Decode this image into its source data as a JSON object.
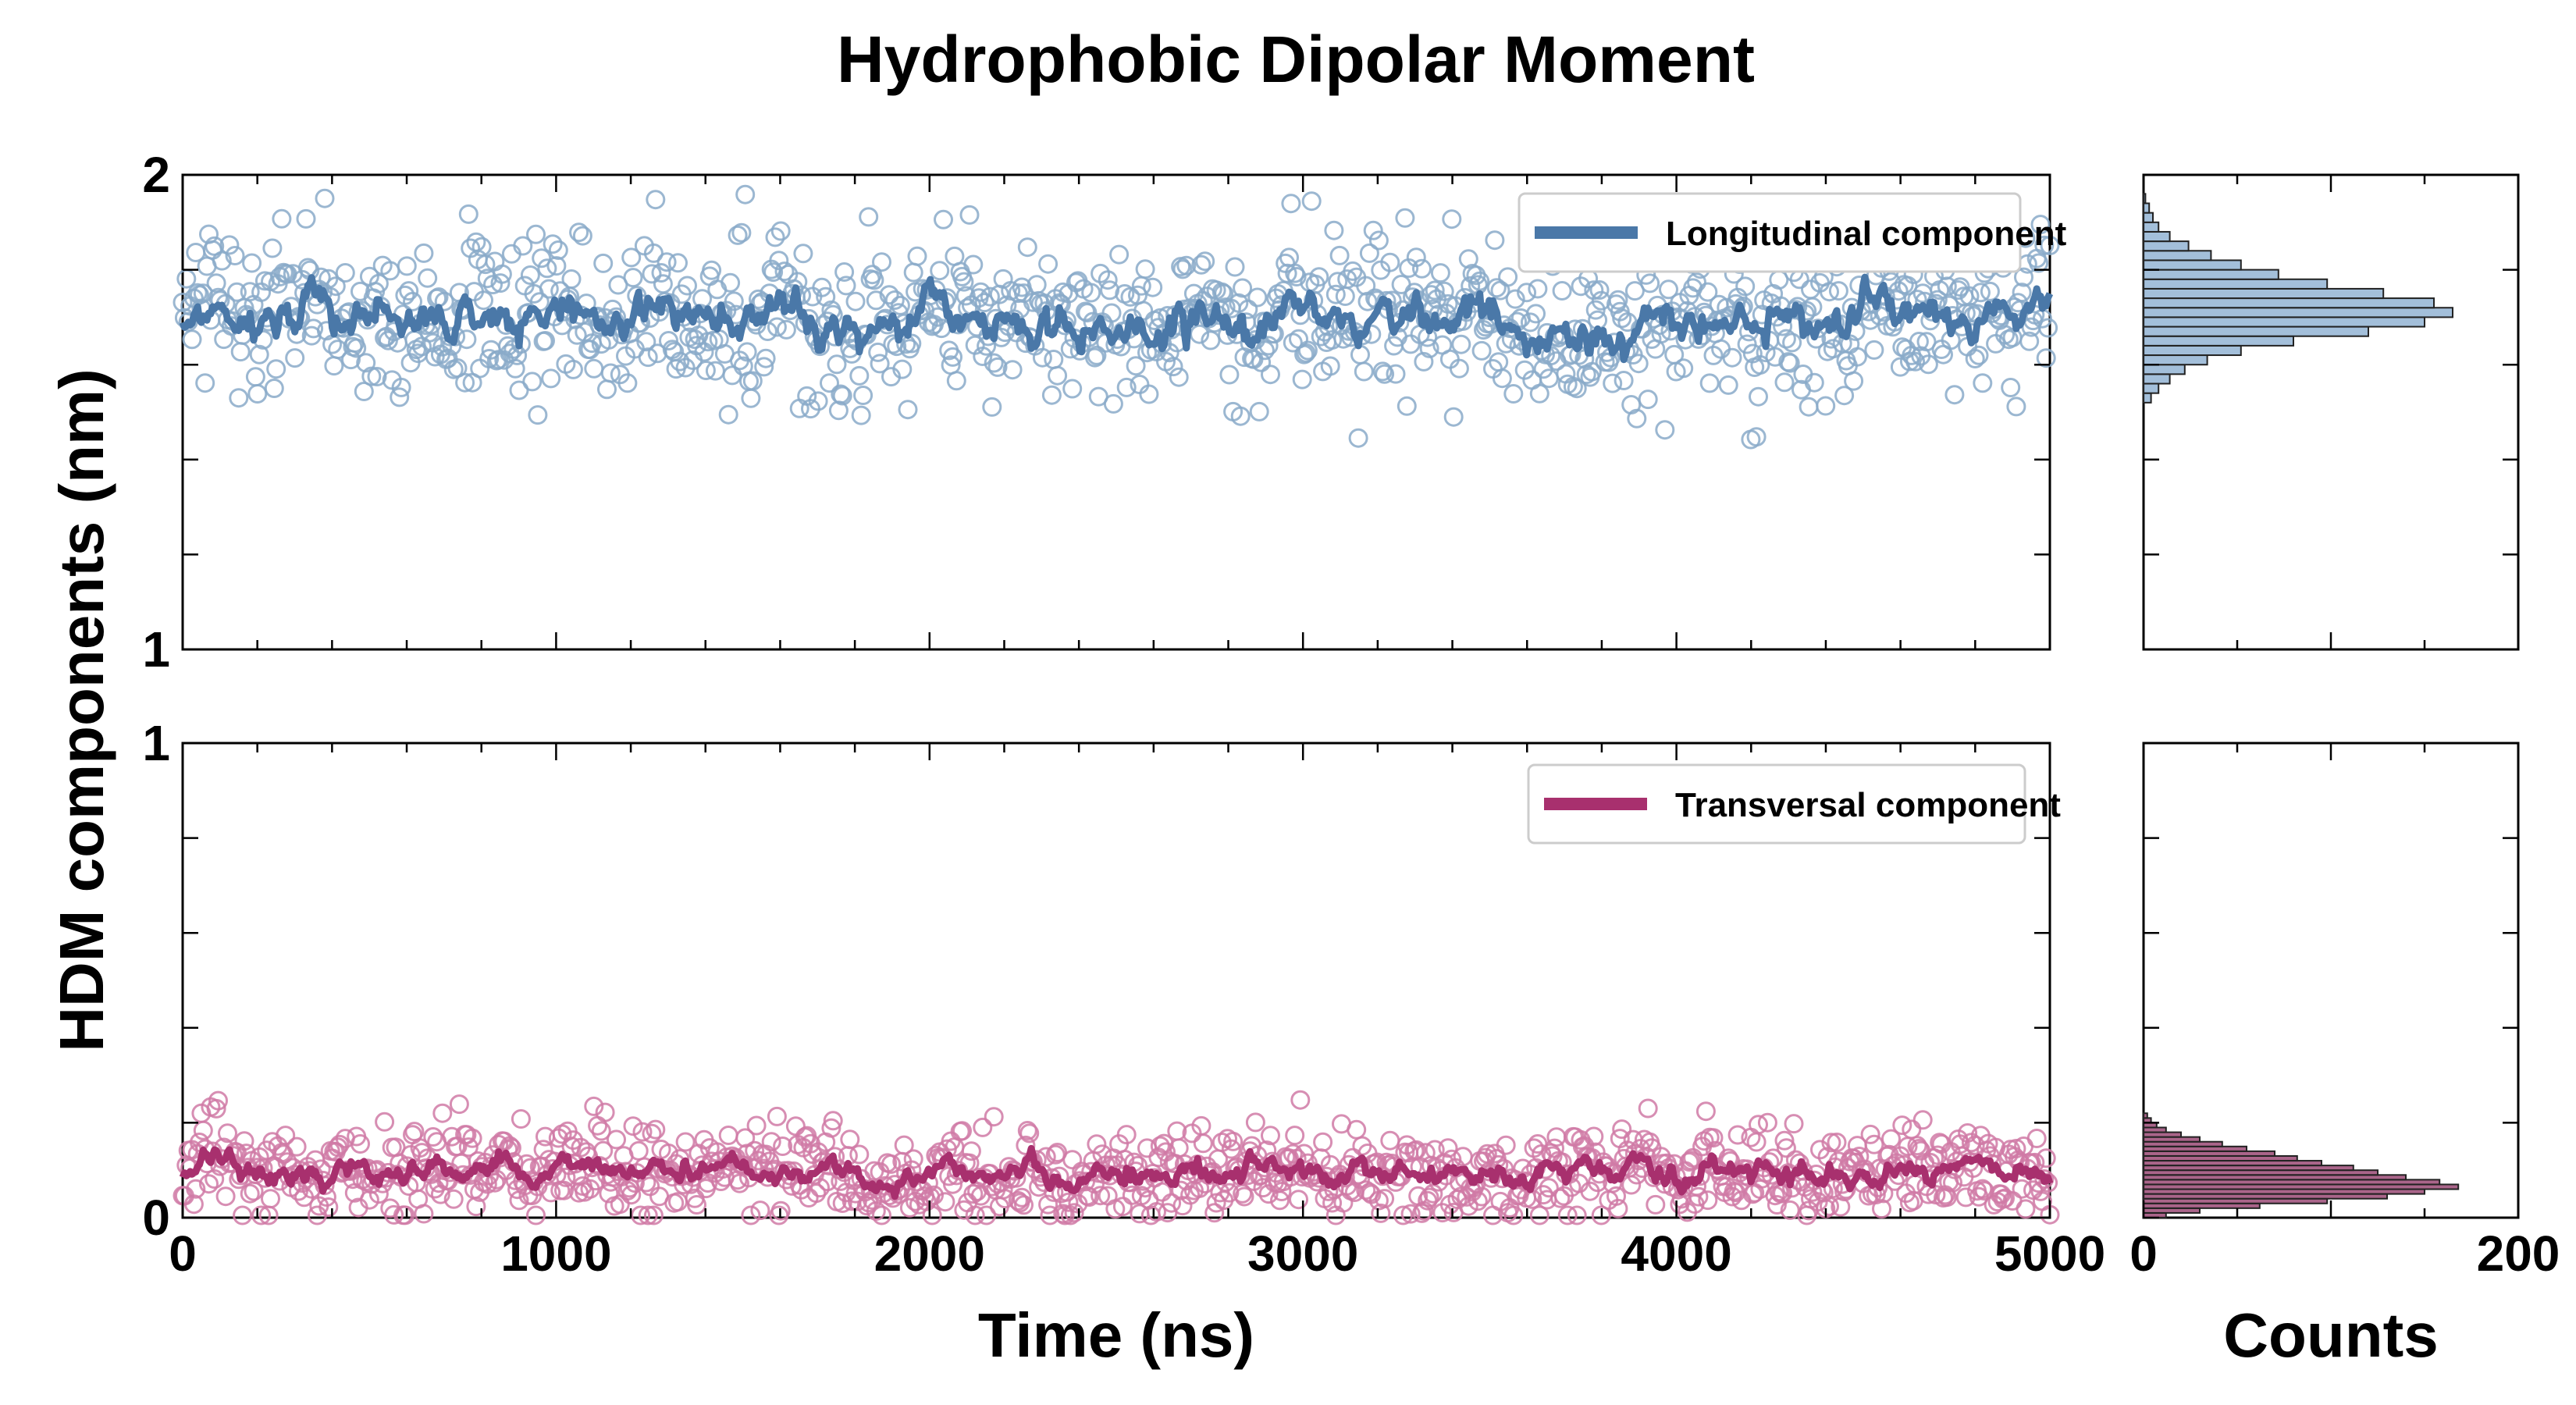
{
  "chart_data": {
    "type": "scatter",
    "title": "Hydrophobic Dipolar Moment",
    "ylabel": "HDM components (nm)",
    "xlabel": "Time (ns)",
    "hist_xlabel": "Counts",
    "colors": {
      "longitudinal": "#4a78a8",
      "longitudinal_markers": "#89aac9",
      "transversal": "#a8306e",
      "transversal_markers": "#d07aa6",
      "hist_long_fill": "#93b4d4",
      "hist_trans_fill": "#9b4a76"
    },
    "panels": [
      {
        "id": "top",
        "legend": "Longitudinal component",
        "legend_position": "top-right",
        "xlim": [
          0,
          5000
        ],
        "ylim": [
          1,
          2
        ],
        "yticks": [
          "1",
          "2"
        ],
        "xtick_labels_visible": false,
        "series": {
          "name": "Longitudinal component",
          "mean": 1.69,
          "scatter_sd": 0.085,
          "running_mean_sd": 0.028,
          "t_start": 0,
          "t_end": 5000
        },
        "histogram": {
          "xlim": [
            0,
            200
          ],
          "bin_centers": [
            1.53,
            1.55,
            1.57,
            1.59,
            1.61,
            1.63,
            1.65,
            1.67,
            1.69,
            1.71,
            1.73,
            1.75,
            1.77,
            1.79,
            1.81,
            1.83,
            1.85,
            1.87,
            1.89,
            1.91,
            1.93,
            1.95
          ],
          "counts": [
            4,
            8,
            14,
            22,
            34,
            52,
            80,
            120,
            150,
            165,
            155,
            128,
            98,
            72,
            52,
            36,
            24,
            14,
            8,
            5,
            3,
            1
          ]
        }
      },
      {
        "id": "bottom",
        "legend": "Transversal component",
        "legend_position": "top-right",
        "xlim": [
          0,
          5000
        ],
        "ylim": [
          0,
          1
        ],
        "yticks": [
          "0",
          "1"
        ],
        "xticks": [
          "0",
          "1000",
          "2000",
          "3000",
          "4000",
          "5000"
        ],
        "series": {
          "name": "Transversal component",
          "mean": 0.095,
          "scatter_sd": 0.045,
          "running_mean_sd": 0.016,
          "t_start": 0,
          "t_end": 5000
        },
        "histogram": {
          "xlim": [
            0,
            200
          ],
          "xticks": [
            "0",
            "200"
          ],
          "bin_centers": [
            0.005,
            0.015,
            0.025,
            0.035,
            0.045,
            0.055,
            0.065,
            0.075,
            0.085,
            0.095,
            0.105,
            0.115,
            0.125,
            0.135,
            0.145,
            0.155,
            0.165,
            0.175,
            0.185,
            0.195,
            0.205,
            0.215
          ],
          "counts": [
            12,
            30,
            62,
            98,
            130,
            150,
            168,
            158,
            140,
            125,
            112,
            95,
            82,
            70,
            55,
            42,
            30,
            20,
            12,
            7,
            4,
            2
          ]
        }
      }
    ]
  }
}
